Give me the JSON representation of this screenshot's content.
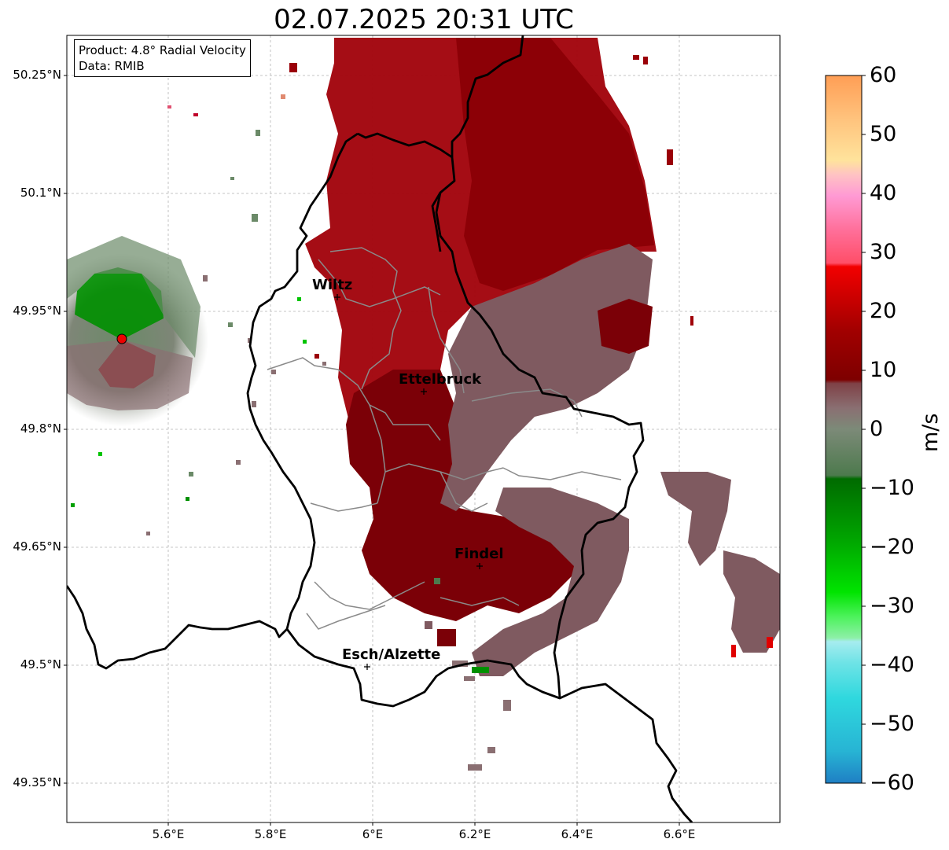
{
  "title": "02.07.2025 20:31 UTC",
  "info": {
    "product": "Product: 4.8° Radial Velocity",
    "data": "Data: RMIB"
  },
  "lat_ticks": [
    "50.25°N",
    "50.1°N",
    "49.95°N",
    "49.8°N",
    "49.65°N",
    "49.5°N",
    "49.35°N"
  ],
  "lon_ticks": [
    "5.6°E",
    "5.8°E",
    "6°E",
    "6.2°E",
    "6.4°E",
    "6.6°E"
  ],
  "cities": [
    {
      "name": "Wiltz"
    },
    {
      "name": "Ettelbruck"
    },
    {
      "name": "Findel"
    },
    {
      "name": "Esch/Alzette"
    }
  ],
  "colorbar": {
    "label": "m/s",
    "ticks": [
      "60",
      "50",
      "40",
      "30",
      "20",
      "10",
      "0",
      "−10",
      "−20",
      "−30",
      "−40",
      "−50",
      "−60"
    ],
    "range": [
      -60,
      60
    ],
    "colors": [
      "#1f7fc4",
      "#27b4d4",
      "#2fd8de",
      "#6ee3e6",
      "#a6ecef",
      "#8ef0a8",
      "#4df25c",
      "#00e400",
      "#00c400",
      "#00a200",
      "#006b00",
      "#4d7a4d",
      "#7c8a78",
      "#8a6f72",
      "#7f4146",
      "#7d0000",
      "#a20000",
      "#d80000",
      "#f20000",
      "#ff4e68",
      "#ff8fcf",
      "#ffc7c7",
      "#ffe39c",
      "#ffc27c",
      "#ff9e55"
    ]
  },
  "colors": {
    "strong_inbound_red": "#a00008",
    "weak_red": "#7b0007",
    "mixed_mauve": "#7f5a60",
    "near_zero_green": "#6b8a68",
    "outbound_green": "#009000",
    "radar_marker": "#ee0000"
  }
}
